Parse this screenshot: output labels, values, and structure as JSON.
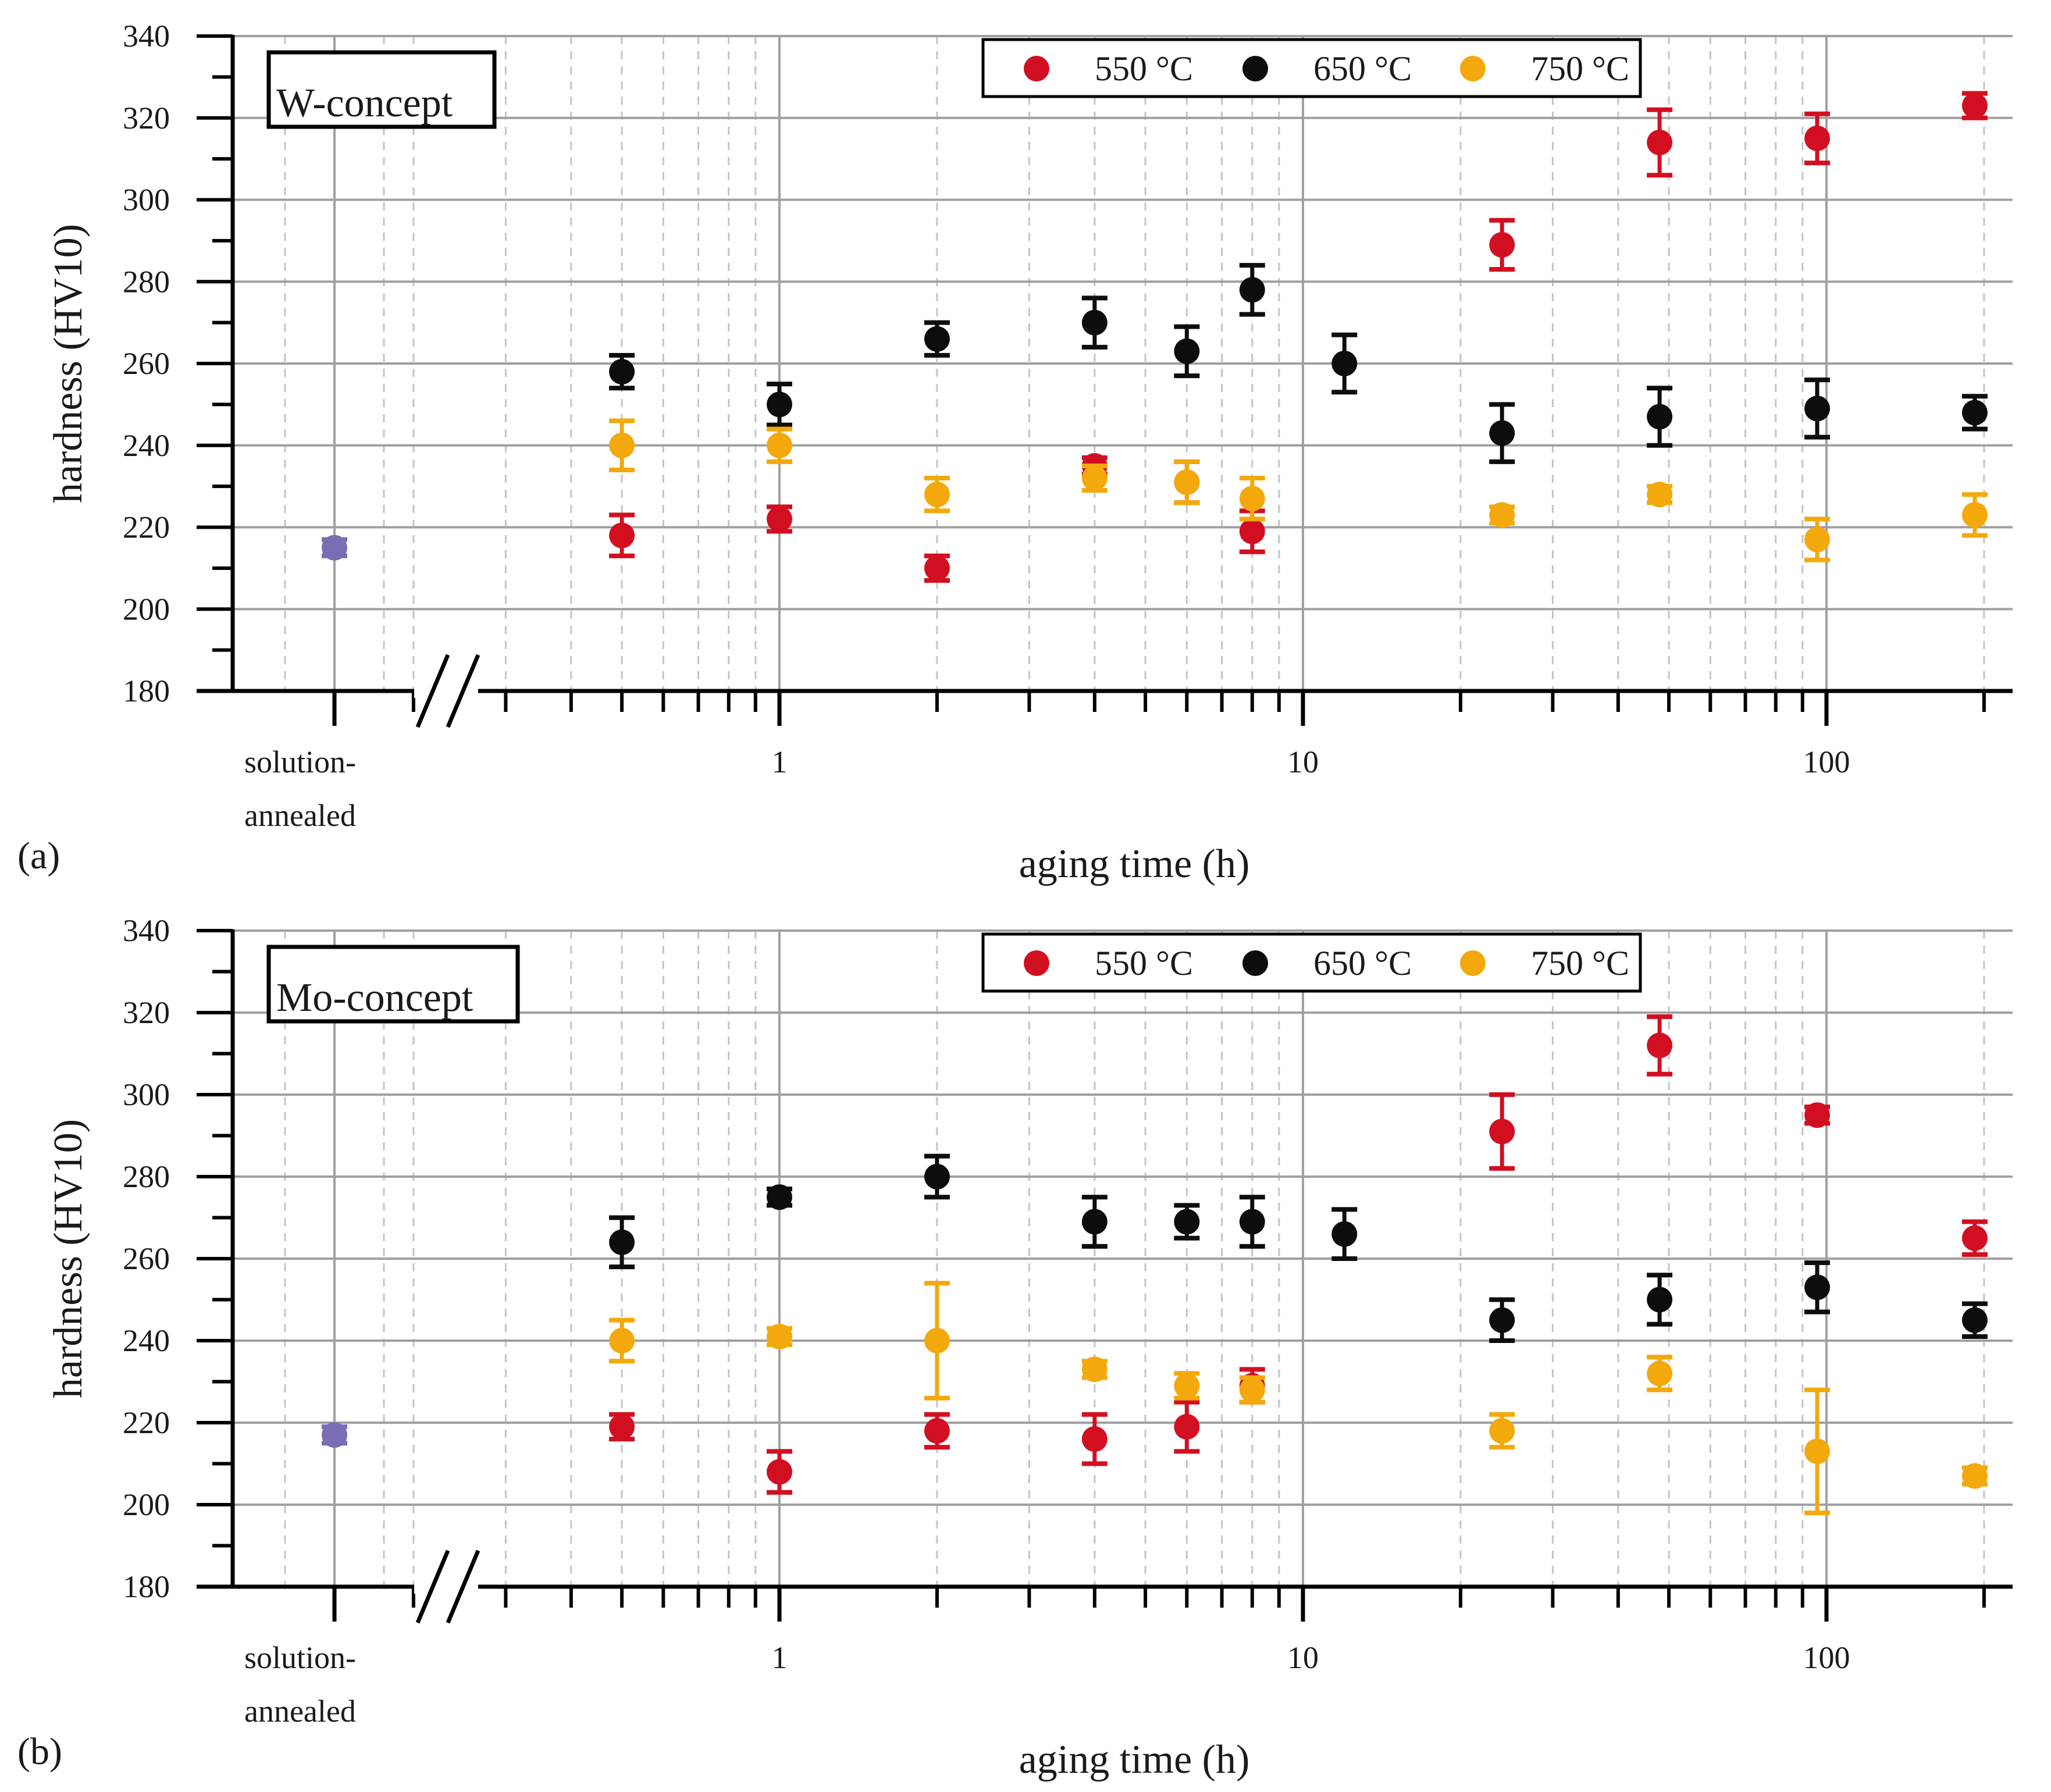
{
  "figure": {
    "panel_labels": [
      "(a)",
      "(b)"
    ],
    "concept_labels": [
      "W-concept",
      "Mo-concept"
    ],
    "legend": [
      "550 °C",
      "650 °C",
      "750 °C"
    ],
    "series_colors": {
      "550 °C": "#d20f21",
      "650 °C": "#0d0d0d",
      "750 °C": "#f3a90c",
      "solution-annealed": "#7a6db5"
    },
    "grid_color": "#a0a0a0",
    "minor_grid_color": "#c4c4c4"
  },
  "chart_data": [
    {
      "type": "scatter",
      "panel": "(a)",
      "concept": "W-concept",
      "xscale": "log",
      "xlabel": "aging time (h)",
      "ylabel": "hardness (HV10)",
      "ylim": [
        180,
        340
      ],
      "yticks": [
        180,
        200,
        220,
        240,
        260,
        280,
        300,
        320,
        340
      ],
      "xticks": [
        1,
        10,
        100
      ],
      "xtick_labels": [
        "1",
        "10",
        "100"
      ],
      "xlim": [
        0.2,
        250
      ],
      "category_label": [
        "solution-",
        "annealed"
      ],
      "grid": true,
      "legend_position": "top-right",
      "solution_annealed": {
        "value": 215,
        "err": 2
      },
      "series": [
        {
          "name": "550 °C",
          "x": [
            0.5,
            1,
            2,
            4,
            6,
            8,
            24,
            48,
            96,
            192
          ],
          "values": [
            218,
            222,
            210,
            235,
            231,
            219,
            289,
            314,
            315,
            323
          ],
          "errors": [
            5,
            3,
            3,
            2,
            5,
            5,
            6,
            8,
            6,
            3
          ]
        },
        {
          "name": "650 °C",
          "x": [
            0.5,
            1,
            2,
            4,
            6,
            8,
            12,
            24,
            48,
            96,
            192
          ],
          "values": [
            258,
            250,
            266,
            270,
            263,
            278,
            260,
            243,
            247,
            249,
            248
          ],
          "errors": [
            4,
            5,
            4,
            6,
            6,
            6,
            7,
            7,
            7,
            7,
            4
          ]
        },
        {
          "name": "750 °C",
          "x": [
            0.5,
            1,
            2,
            4,
            6,
            8,
            24,
            48,
            96,
            192
          ],
          "values": [
            240,
            240,
            228,
            232,
            231,
            227,
            223,
            228,
            217,
            223
          ],
          "errors": [
            6,
            4,
            4,
            3,
            5,
            5,
            2,
            2,
            5,
            5
          ]
        }
      ]
    },
    {
      "type": "scatter",
      "panel": "(b)",
      "concept": "Mo-concept",
      "xscale": "log",
      "xlabel": "aging time (h)",
      "ylabel": "hardness (HV10)",
      "ylim": [
        180,
        340
      ],
      "yticks": [
        180,
        200,
        220,
        240,
        260,
        280,
        300,
        320,
        340
      ],
      "xticks": [
        1,
        10,
        100
      ],
      "xtick_labels": [
        "1",
        "10",
        "100"
      ],
      "xlim": [
        0.2,
        250
      ],
      "category_label": [
        "solution-",
        "annealed"
      ],
      "grid": true,
      "legend_position": "top-right",
      "solution_annealed": {
        "value": 217,
        "err": 2
      },
      "series": [
        {
          "name": "550 °C",
          "x": [
            0.5,
            1,
            2,
            4,
            6,
            8,
            24,
            48,
            96,
            192
          ],
          "values": [
            219,
            208,
            218,
            216,
            219,
            229,
            291,
            312,
            295,
            265
          ],
          "errors": [
            3,
            5,
            4,
            6,
            6,
            4,
            9,
            7,
            2,
            4
          ]
        },
        {
          "name": "650 °C",
          "x": [
            0.5,
            1,
            2,
            4,
            6,
            8,
            12,
            24,
            48,
            96,
            192
          ],
          "values": [
            264,
            275,
            280,
            269,
            269,
            269,
            266,
            245,
            250,
            253,
            245
          ],
          "errors": [
            6,
            2,
            5,
            6,
            4,
            6,
            6,
            5,
            6,
            6,
            4
          ]
        },
        {
          "name": "750 °C",
          "x": [
            0.5,
            1,
            2,
            4,
            6,
            8,
            24,
            48,
            96,
            192
          ],
          "values": [
            240,
            241,
            240,
            233,
            229,
            228,
            218,
            232,
            213,
            207
          ],
          "errors": [
            5,
            2,
            14,
            2,
            3,
            3,
            4,
            4,
            15,
            2
          ]
        }
      ]
    }
  ]
}
